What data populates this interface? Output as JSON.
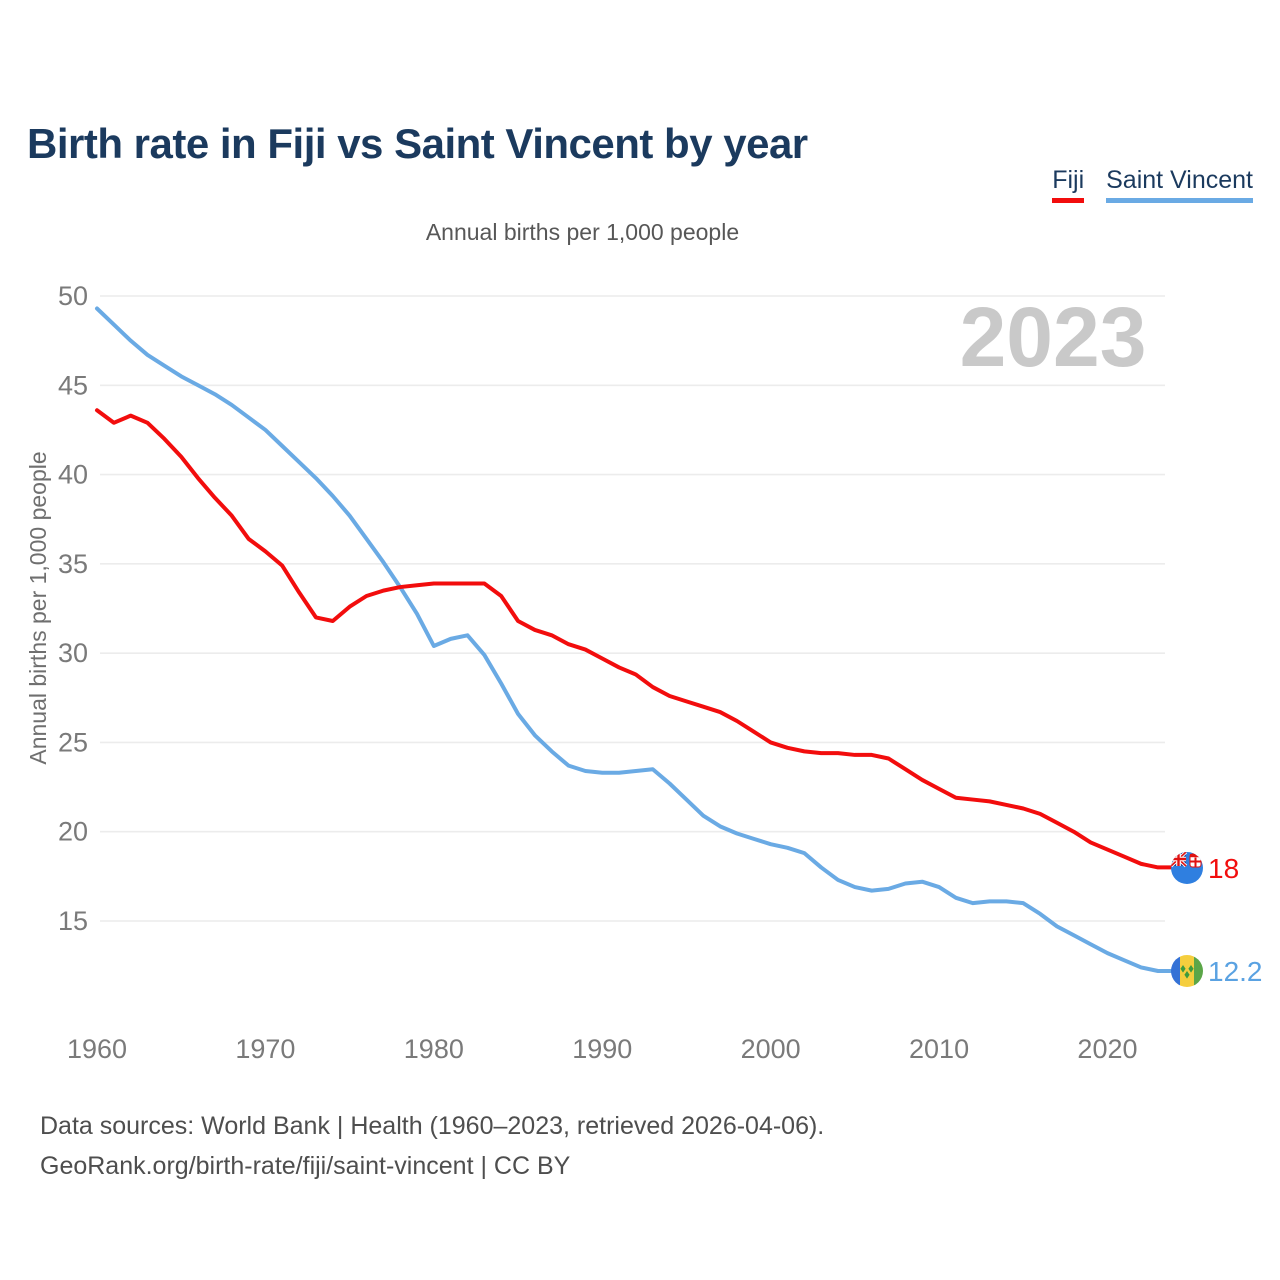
{
  "title": "Birth rate in Fiji vs Saint Vincent by year",
  "subtitle": "Annual births per 1,000 people",
  "watermark": "2023",
  "legend": [
    {
      "label": "Fiji",
      "color": "#f20d0d"
    },
    {
      "label": "Saint Vincent",
      "color": "#6aaae4"
    }
  ],
  "footer": {
    "line1": "Data sources: World Bank | Health (1960–2023, retrieved 2026-04-06).",
    "line2": "GeoRank.org/birth-rate/fiji/saint-vincent | CC BY"
  },
  "chart_data": {
    "type": "line",
    "title": "Birth rate in Fiji vs Saint Vincent by year",
    "subtitle": "Annual births per 1,000 people",
    "ylabel": "Annual births per 1,000 people",
    "xlabel": "",
    "grid": "horizontal",
    "legend_position": "top-right",
    "ylim": [
      15,
      50
    ],
    "xlim": [
      1960,
      2023
    ],
    "y_ticks": [
      50,
      45,
      40,
      35,
      30,
      25,
      20,
      15
    ],
    "x_ticks": [
      1960,
      1970,
      1980,
      1990,
      2000,
      2010,
      2020
    ],
    "x": [
      1960,
      1961,
      1962,
      1963,
      1964,
      1965,
      1966,
      1967,
      1968,
      1969,
      1970,
      1971,
      1972,
      1973,
      1974,
      1975,
      1976,
      1977,
      1978,
      1979,
      1980,
      1981,
      1982,
      1983,
      1984,
      1985,
      1986,
      1987,
      1988,
      1989,
      1990,
      1991,
      1992,
      1993,
      1994,
      1995,
      1996,
      1997,
      1998,
      1999,
      2000,
      2001,
      2002,
      2003,
      2004,
      2005,
      2006,
      2007,
      2008,
      2009,
      2010,
      2011,
      2012,
      2013,
      2014,
      2015,
      2016,
      2017,
      2018,
      2019,
      2020,
      2021,
      2022,
      2023
    ],
    "series": [
      {
        "name": "Fiji",
        "color": "#f20d0d",
        "end_label": "18",
        "flag": "fiji",
        "values": [
          43.6,
          42.9,
          43.3,
          42.9,
          42.0,
          41.0,
          39.8,
          38.7,
          37.7,
          36.4,
          35.7,
          34.9,
          33.4,
          32.0,
          31.8,
          32.6,
          33.2,
          33.5,
          33.7,
          33.8,
          33.9,
          33.9,
          33.9,
          33.9,
          33.2,
          31.8,
          31.3,
          31.0,
          30.5,
          30.2,
          29.7,
          29.2,
          28.8,
          28.1,
          27.6,
          27.3,
          27.0,
          26.7,
          26.2,
          25.6,
          25.0,
          24.7,
          24.5,
          24.4,
          24.4,
          24.3,
          24.3,
          24.1,
          23.5,
          22.9,
          22.4,
          21.9,
          21.8,
          21.7,
          21.5,
          21.3,
          21.0,
          20.5,
          20.0,
          19.4,
          19.0,
          18.6,
          18.2,
          18.0
        ]
      },
      {
        "name": "Saint Vincent",
        "color": "#6aaae4",
        "end_label": "12.2",
        "flag": "saint-vincent",
        "values": [
          49.3,
          48.4,
          47.5,
          46.7,
          46.1,
          45.5,
          45.0,
          44.5,
          43.9,
          43.2,
          42.5,
          41.6,
          40.7,
          39.8,
          38.8,
          37.7,
          36.4,
          35.1,
          33.7,
          32.2,
          30.4,
          30.8,
          31.0,
          29.9,
          28.3,
          26.6,
          25.4,
          24.5,
          23.7,
          23.4,
          23.3,
          23.3,
          23.4,
          23.5,
          22.7,
          21.8,
          20.9,
          20.3,
          19.9,
          19.6,
          19.3,
          19.1,
          18.8,
          18.0,
          17.3,
          16.9,
          16.7,
          16.8,
          17.1,
          17.2,
          16.9,
          16.3,
          16.0,
          16.1,
          16.1,
          16.0,
          15.4,
          14.7,
          14.2,
          13.7,
          13.2,
          12.8,
          12.4,
          12.2
        ]
      }
    ]
  }
}
